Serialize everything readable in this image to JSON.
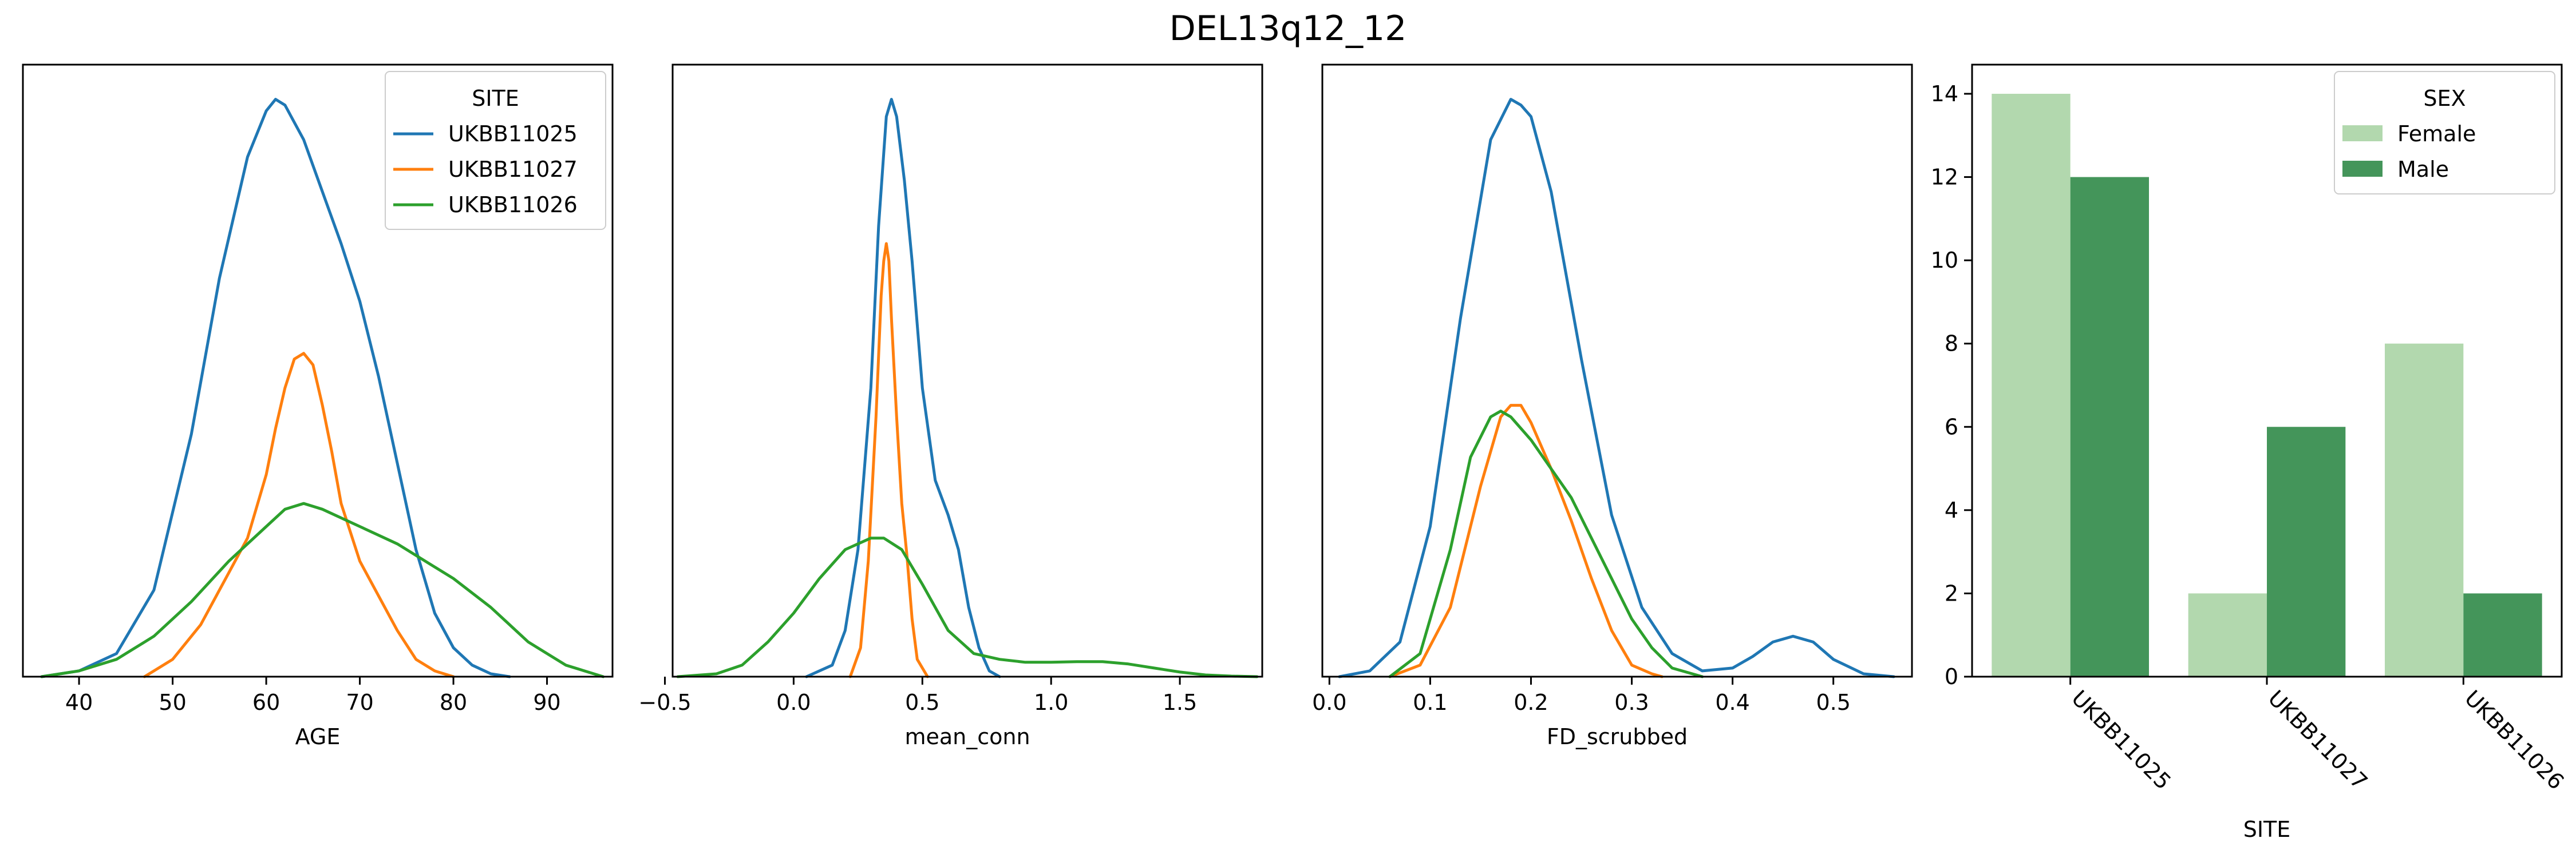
{
  "figure": {
    "title": "DEL13q12_12"
  },
  "chart_data": [
    {
      "type": "line",
      "subtype": "kde",
      "xlabel": "AGE",
      "ylabel": "",
      "xlim": [
        34,
        97
      ],
      "ylim": [
        0,
        1.06
      ],
      "yticks_shown": false,
      "xticks": [
        40,
        50,
        60,
        70,
        80,
        90
      ],
      "legend": {
        "title": "SITE",
        "placement": "top-right"
      },
      "series": [
        {
          "name": "UKBB11025",
          "color": "#1f77b4",
          "x": [
            36,
            40,
            44,
            48,
            52,
            55,
            58,
            60,
            61,
            62,
            64,
            66,
            68,
            70,
            72,
            74,
            76,
            78,
            80,
            82,
            84,
            86
          ],
          "y": [
            0.0,
            0.01,
            0.04,
            0.15,
            0.42,
            0.69,
            0.9,
            0.98,
            1.0,
            0.99,
            0.93,
            0.84,
            0.75,
            0.65,
            0.52,
            0.37,
            0.22,
            0.11,
            0.05,
            0.02,
            0.005,
            0.0
          ]
        },
        {
          "name": "UKBB11027",
          "color": "#ff7f0e",
          "x": [
            47,
            50,
            53,
            56,
            58,
            60,
            61,
            62,
            63,
            64,
            65,
            66,
            67,
            68,
            70,
            72,
            74,
            76,
            78,
            80
          ],
          "y": [
            0.0,
            0.03,
            0.09,
            0.18,
            0.24,
            0.35,
            0.43,
            0.5,
            0.55,
            0.56,
            0.54,
            0.47,
            0.39,
            0.3,
            0.2,
            0.14,
            0.08,
            0.03,
            0.01,
            0.0
          ]
        },
        {
          "name": "UKBB11026",
          "color": "#2ca02c",
          "x": [
            36,
            40,
            44,
            48,
            52,
            56,
            60,
            62,
            64,
            66,
            70,
            74,
            78,
            80,
            84,
            88,
            92,
            96
          ],
          "y": [
            0.0,
            0.01,
            0.03,
            0.07,
            0.13,
            0.2,
            0.26,
            0.29,
            0.3,
            0.29,
            0.26,
            0.23,
            0.19,
            0.17,
            0.12,
            0.06,
            0.02,
            0.0
          ]
        }
      ]
    },
    {
      "type": "line",
      "subtype": "kde",
      "xlabel": "mean_conn",
      "ylabel": "",
      "xlim": [
        -0.47,
        1.82
      ],
      "ylim": [
        0,
        1.06
      ],
      "yticks_shown": false,
      "xticks": [
        -0.5,
        0.0,
        0.5,
        1.0,
        1.5
      ],
      "series": [
        {
          "name": "UKBB11025",
          "color": "#1f77b4",
          "x": [
            0.05,
            0.15,
            0.2,
            0.25,
            0.3,
            0.33,
            0.36,
            0.38,
            0.4,
            0.43,
            0.46,
            0.5,
            0.55,
            0.6,
            0.64,
            0.68,
            0.72,
            0.76,
            0.8
          ],
          "y": [
            0.0,
            0.02,
            0.08,
            0.22,
            0.5,
            0.78,
            0.97,
            1.0,
            0.97,
            0.86,
            0.72,
            0.5,
            0.34,
            0.28,
            0.22,
            0.12,
            0.05,
            0.01,
            0.0
          ]
        },
        {
          "name": "UKBB11027",
          "color": "#ff7f0e",
          "x": [
            0.22,
            0.26,
            0.29,
            0.32,
            0.34,
            0.35,
            0.36,
            0.37,
            0.38,
            0.4,
            0.42,
            0.44,
            0.46,
            0.48,
            0.52
          ],
          "y": [
            0.0,
            0.05,
            0.2,
            0.45,
            0.66,
            0.72,
            0.75,
            0.72,
            0.62,
            0.45,
            0.3,
            0.21,
            0.1,
            0.03,
            0.0
          ]
        },
        {
          "name": "UKBB11026",
          "color": "#2ca02c",
          "x": [
            -0.45,
            -0.3,
            -0.2,
            -0.1,
            0.0,
            0.1,
            0.2,
            0.3,
            0.35,
            0.42,
            0.5,
            0.6,
            0.7,
            0.8,
            0.9,
            1.0,
            1.1,
            1.2,
            1.3,
            1.4,
            1.5,
            1.6,
            1.7,
            1.8
          ],
          "y": [
            0.0,
            0.005,
            0.02,
            0.06,
            0.11,
            0.17,
            0.22,
            0.24,
            0.24,
            0.22,
            0.16,
            0.08,
            0.04,
            0.03,
            0.025,
            0.025,
            0.026,
            0.026,
            0.022,
            0.015,
            0.008,
            0.003,
            0.001,
            0.0
          ]
        }
      ]
    },
    {
      "type": "line",
      "subtype": "kde",
      "xlabel": "FD_scrubbed",
      "ylabel": "",
      "xlim": [
        -0.007,
        0.578
      ],
      "ylim": [
        0,
        1.06
      ],
      "yticks_shown": false,
      "xticks": [
        0.0,
        0.1,
        0.2,
        0.3,
        0.4,
        0.5
      ],
      "series": [
        {
          "name": "UKBB11025",
          "color": "#1f77b4",
          "x": [
            0.01,
            0.04,
            0.07,
            0.1,
            0.13,
            0.16,
            0.18,
            0.19,
            0.2,
            0.22,
            0.25,
            0.28,
            0.31,
            0.34,
            0.37,
            0.4,
            0.42,
            0.44,
            0.46,
            0.48,
            0.5,
            0.53,
            0.56
          ],
          "y": [
            0.0,
            0.01,
            0.06,
            0.26,
            0.62,
            0.93,
            1.0,
            0.99,
            0.97,
            0.84,
            0.55,
            0.28,
            0.12,
            0.04,
            0.01,
            0.015,
            0.035,
            0.06,
            0.07,
            0.06,
            0.03,
            0.005,
            0.0
          ]
        },
        {
          "name": "UKBB11027",
          "color": "#ff7f0e",
          "x": [
            0.06,
            0.09,
            0.12,
            0.15,
            0.17,
            0.18,
            0.19,
            0.2,
            0.22,
            0.24,
            0.26,
            0.28,
            0.3,
            0.32,
            0.33
          ],
          "y": [
            0.0,
            0.02,
            0.12,
            0.33,
            0.45,
            0.47,
            0.47,
            0.44,
            0.36,
            0.27,
            0.17,
            0.08,
            0.02,
            0.005,
            0.0
          ]
        },
        {
          "name": "UKBB11026",
          "color": "#2ca02c",
          "x": [
            0.06,
            0.09,
            0.12,
            0.14,
            0.16,
            0.17,
            0.18,
            0.2,
            0.22,
            0.24,
            0.26,
            0.28,
            0.3,
            0.32,
            0.34,
            0.37
          ],
          "y": [
            0.0,
            0.04,
            0.22,
            0.38,
            0.45,
            0.46,
            0.45,
            0.41,
            0.36,
            0.31,
            0.24,
            0.17,
            0.1,
            0.05,
            0.015,
            0.0
          ]
        }
      ]
    },
    {
      "type": "bar",
      "categories": [
        "UKBB11025",
        "UKBB11027",
        "UKBB11026"
      ],
      "xlabel": "SITE",
      "ylabel": "",
      "ylim": [
        0,
        14.7
      ],
      "yticks": [
        0,
        2,
        4,
        6,
        8,
        10,
        12,
        14
      ],
      "xtick_rotation": -45,
      "legend": {
        "title": "SEX",
        "placement": "top-right"
      },
      "series": [
        {
          "name": "Female",
          "color": "#b2d8ae",
          "values": [
            14,
            2,
            8
          ]
        },
        {
          "name": "Male",
          "color": "#44955a",
          "values": [
            12,
            6,
            2
          ]
        }
      ]
    }
  ]
}
